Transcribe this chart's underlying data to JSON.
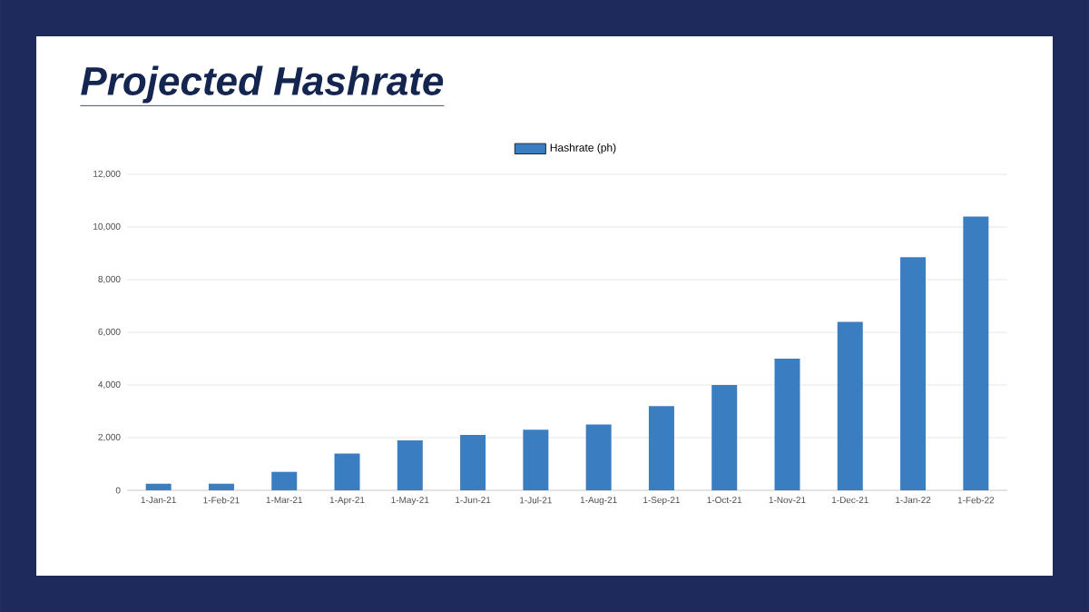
{
  "chart_data": {
    "type": "bar",
    "title": "Projected Hashrate",
    "categories": [
      "1-Jan-21",
      "1-Feb-21",
      "1-Mar-21",
      "1-Apr-21",
      "1-May-21",
      "1-Jun-21",
      "1-Jul-21",
      "1-Aug-21",
      "1-Sep-21",
      "1-Oct-21",
      "1-Nov-21",
      "1-Dec-21",
      "1-Jan-22",
      "1-Feb-22"
    ],
    "series": [
      {
        "name": "Hashrate (ph)",
        "color": "#3a7dc0",
        "values": [
          250,
          250,
          700,
          1400,
          1900,
          2100,
          2300,
          2500,
          3200,
          4000,
          5000,
          6400,
          8850,
          10400
        ]
      }
    ],
    "ylim": [
      0,
      12000
    ],
    "yticks": [
      0,
      {
        "value": 2000,
        "label": "2,000"
      },
      {
        "value": 4000,
        "label": "4,000"
      },
      {
        "value": 6000,
        "label": "6,000"
      },
      {
        "value": 8000,
        "label": "8,000"
      },
      {
        "value": 10000,
        "label": "10,000"
      },
      {
        "value": 12000,
        "label": "12,000"
      }
    ],
    "grid": "y",
    "legend": "top"
  }
}
